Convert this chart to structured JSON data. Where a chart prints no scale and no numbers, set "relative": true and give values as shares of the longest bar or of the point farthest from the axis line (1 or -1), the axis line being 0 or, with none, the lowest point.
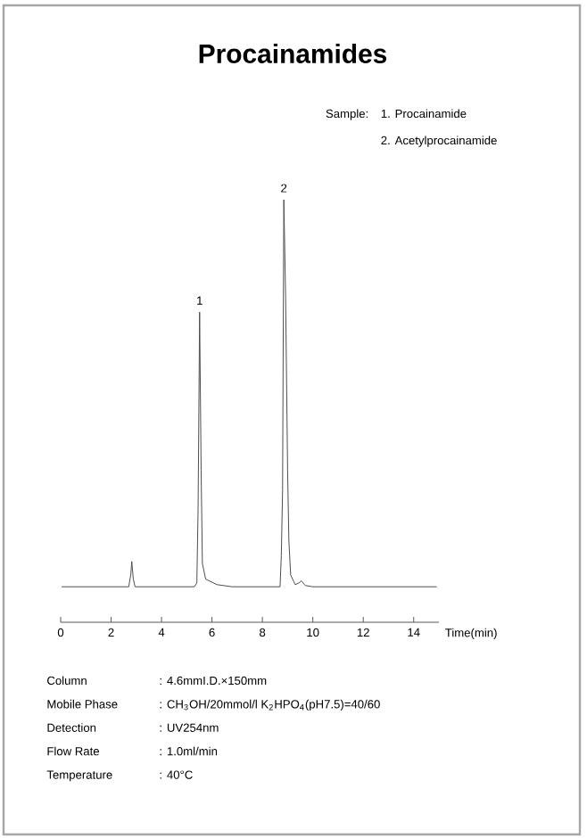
{
  "chart_data": {
    "type": "line",
    "title": "Procainamides",
    "xlabel": "Time(min)",
    "relative": true,
    "color": "#4d4d4d",
    "x": [
      0.05,
      2.7,
      2.78,
      2.82,
      2.88,
      2.95,
      5.3,
      5.4,
      5.45,
      5.51,
      5.57,
      5.62,
      5.75,
      6.2,
      6.8,
      8.7,
      8.75,
      8.8,
      8.85,
      8.92,
      9.0,
      9.05,
      9.12,
      9.3,
      9.45,
      9.55,
      9.7,
      10,
      14.9
    ],
    "values": [
      0.084,
      0.084,
      0.112,
      0.144,
      0.102,
      0.084,
      0.084,
      0.093,
      0.267,
      0.734,
      0.359,
      0.139,
      0.102,
      0.089,
      0.084,
      0.084,
      0.157,
      0.313,
      1,
      0.771,
      0.359,
      0.194,
      0.112,
      0.089,
      0.093,
      0.098,
      0.087,
      0.084,
      0.084
    ],
    "xlim": [
      0,
      15
    ],
    "xticks": [
      0,
      2,
      4,
      6,
      8,
      10,
      12,
      14
    ],
    "annotations": [
      "Sample:",
      "1. Procainamide",
      "2. Acetylprocainamide",
      {
        "text": "1",
        "x": 5.51,
        "y": 0.734
      },
      {
        "text": "2",
        "x": 8.85,
        "y": 1
      },
      "Column",
      ": 4.6mmI.D.×150mm",
      "Mobile Phase",
      ": CH$_{3}$OH/20mmol/l K$_{2}$HPO$_{4}$(pH7.5)=40/60",
      "Detection",
      ": UV254nm",
      "Flow Rate",
      ": 1.0ml/min",
      "Temperature",
      ": 40°C"
    ]
  }
}
